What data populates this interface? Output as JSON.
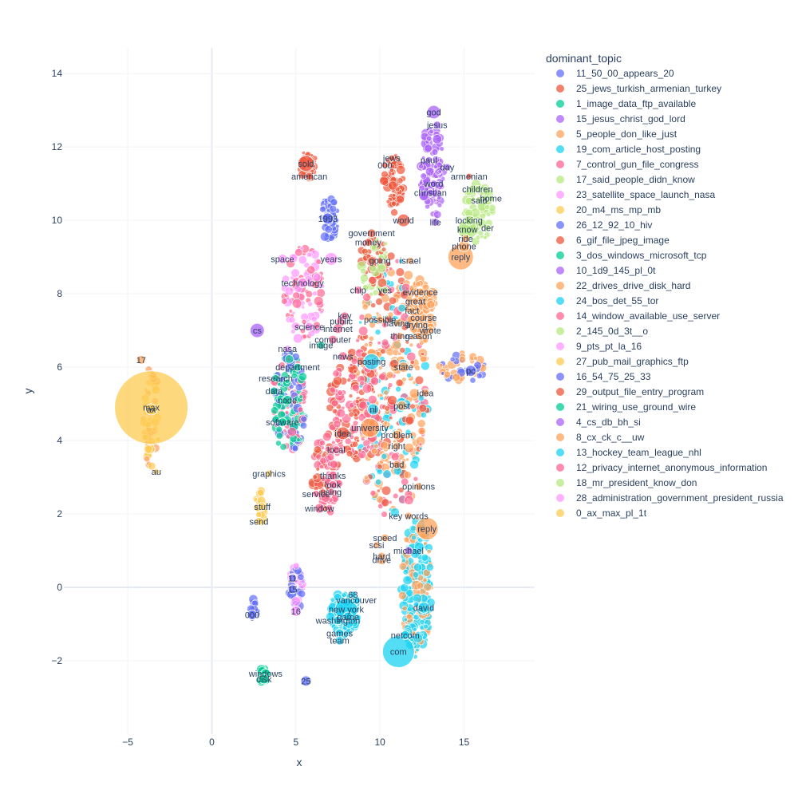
{
  "chart_data": {
    "type": "scatter",
    "title": "",
    "xlabel": "x",
    "ylabel": "y",
    "xlim": [
      -8.8,
      19.2
    ],
    "ylim": [
      -4.0,
      14.7
    ],
    "x_ticks": [
      -5,
      0,
      5,
      10,
      15
    ],
    "x_tick_labels": [
      "−5",
      "0",
      "5",
      "10",
      "15"
    ],
    "y_ticks": [
      -2,
      0,
      2,
      4,
      6,
      8,
      10,
      12,
      14
    ],
    "y_tick_labels": [
      "−2",
      "0",
      "2",
      "4",
      "6",
      "8",
      "10",
      "12",
      "14"
    ],
    "grid": true,
    "legend": {
      "title": "dominant_topic",
      "placement": "top-right",
      "entries": [
        {
          "name": "11_50_00_appears_20",
          "color": "#636efa"
        },
        {
          "name": "25_jews_turkish_armenian_turkey",
          "color": "#EF553B"
        },
        {
          "name": "1_image_data_ftp_available",
          "color": "#00cc96"
        },
        {
          "name": "15_jesus_christ_god_lord",
          "color": "#ab63fa"
        },
        {
          "name": "5_people_don_like_just",
          "color": "#FFA15A"
        },
        {
          "name": "19_com_article_host_posting",
          "color": "#19d3f3"
        },
        {
          "name": "7_control_gun_file_congress",
          "color": "#FF6692"
        },
        {
          "name": "17_said_people_didn_know",
          "color": "#B6E880"
        },
        {
          "name": "23_satellite_space_launch_nasa",
          "color": "#FF97FF"
        },
        {
          "name": "20_m4_ms_mp_mb",
          "color": "#FECB52"
        },
        {
          "name": "26_12_92_10_hiv",
          "color": "#636efa"
        },
        {
          "name": "6_gif_file_jpeg_image",
          "color": "#EF553B"
        },
        {
          "name": "3_dos_windows_microsoft_tcp",
          "color": "#00cc96"
        },
        {
          "name": "10_1d9_145_pl_0t",
          "color": "#ab63fa"
        },
        {
          "name": "22_drives_drive_disk_hard",
          "color": "#FFA15A"
        },
        {
          "name": "24_bos_det_55_tor",
          "color": "#19d3f3"
        },
        {
          "name": "14_window_available_use_server",
          "color": "#FF6692"
        },
        {
          "name": "2_145_0d_3t__o",
          "color": "#B6E880"
        },
        {
          "name": "9_pts_pt_la_16",
          "color": "#FF97FF"
        },
        {
          "name": "27_pub_mail_graphics_ftp",
          "color": "#FECB52"
        },
        {
          "name": "16_54_75_25_33",
          "color": "#636efa"
        },
        {
          "name": "29_output_file_entry_program",
          "color": "#EF553B"
        },
        {
          "name": "21_wiring_use_ground_wire",
          "color": "#00cc96"
        },
        {
          "name": "4_cs_db_bh_si",
          "color": "#ab63fa"
        },
        {
          "name": "8_cx_ck_c__uw",
          "color": "#FFA15A"
        },
        {
          "name": "13_hockey_team_league_nhl",
          "color": "#19d3f3"
        },
        {
          "name": "12_privacy_internet_anonymous_information",
          "color": "#FF6692"
        },
        {
          "name": "18_mr_president_know_don",
          "color": "#B6E880"
        },
        {
          "name": "28_administration_government_president_russia",
          "color": "#FF97FF"
        },
        {
          "name": "0_ax_max_pl_1t",
          "color": "#FECB52"
        }
      ]
    },
    "points": [
      {
        "label": "max",
        "x": -3.6,
        "y": 4.9,
        "size": 90,
        "topic": 29
      },
      {
        "label": "ax",
        "x": -3.6,
        "y": 4.85,
        "size": 12,
        "topic": 29
      },
      {
        "label": "17",
        "x": -4.2,
        "y": 6.2,
        "size": 9,
        "topic": 4
      },
      {
        "label": "au",
        "x": -3.3,
        "y": 3.15,
        "size": 6,
        "topic": 29
      },
      {
        "label": "cs",
        "x": 2.7,
        "y": 7.0,
        "size": 16,
        "topic": 23
      },
      {
        "label": "god",
        "x": 13.2,
        "y": 12.95,
        "size": 15,
        "topic": 3
      },
      {
        "label": "jesus",
        "x": 13.4,
        "y": 12.6,
        "size": 8,
        "topic": 3
      },
      {
        "label": "jews",
        "x": 10.7,
        "y": 11.7,
        "size": 6,
        "topic": 1
      },
      {
        "label": "000",
        "x": 10.3,
        "y": 11.5,
        "size": 6,
        "topic": 1
      },
      {
        "label": "paul",
        "x": 12.9,
        "y": 11.65,
        "size": 6,
        "topic": 3
      },
      {
        "label": "day",
        "x": 14.0,
        "y": 11.45,
        "size": 7,
        "topic": 3
      },
      {
        "label": "armenian",
        "x": 15.3,
        "y": 11.2,
        "size": 6,
        "topic": 1
      },
      {
        "label": "word",
        "x": 13.2,
        "y": 11.0,
        "size": 7,
        "topic": 3
      },
      {
        "label": "christian",
        "x": 13.0,
        "y": 10.75,
        "size": 7,
        "topic": 3
      },
      {
        "label": "children",
        "x": 15.8,
        "y": 10.85,
        "size": 7,
        "topic": 7
      },
      {
        "label": "said",
        "x": 15.9,
        "y": 10.55,
        "size": 7,
        "topic": 7
      },
      {
        "label": "home",
        "x": 16.6,
        "y": 10.6,
        "size": 6,
        "topic": 7
      },
      {
        "label": "world",
        "x": 11.4,
        "y": 10.0,
        "size": 14,
        "topic": 1
      },
      {
        "label": "life",
        "x": 13.3,
        "y": 9.95,
        "size": 8,
        "topic": 3
      },
      {
        "label": "locking",
        "x": 15.3,
        "y": 10.0,
        "size": 10,
        "topic": 17
      },
      {
        "label": "know",
        "x": 15.2,
        "y": 9.75,
        "size": 22,
        "topic": 17
      },
      {
        "label": "der",
        "x": 16.4,
        "y": 9.8,
        "size": 6,
        "topic": 17
      },
      {
        "label": "phone",
        "x": 15.0,
        "y": 9.3,
        "size": 12,
        "topic": 4
      },
      {
        "label": "reply",
        "x": 14.8,
        "y": 9.0,
        "size": 30,
        "topic": 4
      },
      {
        "label": "ride",
        "x": 15.1,
        "y": 9.5,
        "size": 8,
        "topic": 4
      },
      {
        "label": "american",
        "x": 5.8,
        "y": 11.2,
        "size": 8,
        "topic": 1
      },
      {
        "label": "sold",
        "x": 5.6,
        "y": 11.55,
        "size": 18,
        "topic": 1
      },
      {
        "label": "1993",
        "x": 6.9,
        "y": 10.05,
        "size": 12,
        "topic": 0
      },
      {
        "label": "government",
        "x": 9.5,
        "y": 9.65,
        "size": 9,
        "topic": 11
      },
      {
        "label": "money",
        "x": 9.3,
        "y": 9.4,
        "size": 8,
        "topic": 11
      },
      {
        "label": "israel",
        "x": 11.8,
        "y": 8.9,
        "size": 7,
        "topic": 14
      },
      {
        "label": "going",
        "x": 10.0,
        "y": 8.9,
        "size": 6,
        "topic": 11
      },
      {
        "label": "space",
        "x": 4.2,
        "y": 8.95,
        "size": 10,
        "topic": 8
      },
      {
        "label": "years",
        "x": 7.1,
        "y": 8.95,
        "size": 14,
        "topic": 8
      },
      {
        "label": "technology",
        "x": 5.4,
        "y": 8.3,
        "size": 10,
        "topic": 8
      },
      {
        "label": "chip",
        "x": 8.7,
        "y": 8.1,
        "size": 8,
        "topic": 6
      },
      {
        "label": "yes",
        "x": 10.3,
        "y": 8.1,
        "size": 7,
        "topic": 17
      },
      {
        "label": "evidence",
        "x": 12.4,
        "y": 8.05,
        "size": 8,
        "topic": 14
      },
      {
        "label": "great",
        "x": 12.1,
        "y": 7.8,
        "size": 7,
        "topic": 14
      },
      {
        "label": "fact",
        "x": 11.9,
        "y": 7.55,
        "size": 6,
        "topic": 14
      },
      {
        "label": "course",
        "x": 12.6,
        "y": 7.35,
        "size": 7,
        "topic": 14
      },
      {
        "label": "possible",
        "x": 10.0,
        "y": 7.3,
        "size": 7,
        "topic": 14
      },
      {
        "label": "having",
        "x": 11.0,
        "y": 7.2,
        "size": 7,
        "topic": 14
      },
      {
        "label": "trying",
        "x": 12.2,
        "y": 7.15,
        "size": 6,
        "topic": 14
      },
      {
        "label": "reason",
        "x": 12.3,
        "y": 6.85,
        "size": 7,
        "topic": 14
      },
      {
        "label": "thing",
        "x": 11.2,
        "y": 6.85,
        "size": 7,
        "topic": 14
      },
      {
        "label": "wrote",
        "x": 13.0,
        "y": 7.0,
        "size": 7,
        "topic": 14
      },
      {
        "label": "key",
        "x": 7.9,
        "y": 7.4,
        "size": 8,
        "topic": 26
      },
      {
        "label": "public",
        "x": 7.7,
        "y": 7.25,
        "size": 10,
        "topic": 26
      },
      {
        "label": "internet",
        "x": 7.5,
        "y": 7.05,
        "size": 10,
        "topic": 26
      },
      {
        "label": "computer",
        "x": 7.2,
        "y": 6.75,
        "size": 9,
        "topic": 26
      },
      {
        "label": "science",
        "x": 5.8,
        "y": 7.1,
        "size": 9,
        "topic": 8
      },
      {
        "label": "image",
        "x": 6.5,
        "y": 6.6,
        "size": 8,
        "topic": 2
      },
      {
        "label": "nasa",
        "x": 4.5,
        "y": 6.5,
        "size": 7,
        "topic": 8
      },
      {
        "label": "news",
        "x": 7.8,
        "y": 6.3,
        "size": 9,
        "topic": 6
      },
      {
        "label": "posting",
        "x": 9.5,
        "y": 6.15,
        "size": 18,
        "topic": 5
      },
      {
        "label": "state",
        "x": 11.4,
        "y": 6.0,
        "size": 11,
        "topic": 14
      },
      {
        "label": "department",
        "x": 5.1,
        "y": 6.0,
        "size": 8,
        "topic": 12
      },
      {
        "label": "research",
        "x": 3.8,
        "y": 5.7,
        "size": 7,
        "topic": 12
      },
      {
        "label": "data",
        "x": 3.7,
        "y": 5.35,
        "size": 8,
        "topic": 2
      },
      {
        "label": "pc",
        "x": 15.4,
        "y": 5.9,
        "size": 12,
        "topic": 20
      },
      {
        "label": "idea",
        "x": 12.7,
        "y": 5.3,
        "size": 8,
        "topic": 14
      },
      {
        "label": "code",
        "x": 4.5,
        "y": 5.1,
        "size": 10,
        "topic": 2
      },
      {
        "label": "post",
        "x": 11.3,
        "y": 4.95,
        "size": 10,
        "topic": 14
      },
      {
        "label": "nl",
        "x": 9.6,
        "y": 4.85,
        "size": 12,
        "topic": 5
      },
      {
        "label": "software",
        "x": 4.2,
        "y": 4.5,
        "size": 9,
        "topic": 2
      },
      {
        "label": "university",
        "x": 9.4,
        "y": 4.35,
        "size": 22,
        "topic": 14
      },
      {
        "label": "problem",
        "x": 11.0,
        "y": 4.15,
        "size": 10,
        "topic": 14
      },
      {
        "label": "idea",
        "x": 7.8,
        "y": 4.2,
        "size": 14,
        "topic": 1
      },
      {
        "label": "right",
        "x": 11.0,
        "y": 3.85,
        "size": 8,
        "topic": 14
      },
      {
        "label": "local",
        "x": 7.4,
        "y": 3.75,
        "size": 8,
        "topic": 6
      },
      {
        "label": "bad",
        "x": 11.0,
        "y": 3.35,
        "size": 8,
        "topic": 14
      },
      {
        "label": "graphics",
        "x": 3.4,
        "y": 3.1,
        "size": 7,
        "topic": 19
      },
      {
        "label": "thanks",
        "x": 7.2,
        "y": 3.05,
        "size": 9,
        "topic": 26
      },
      {
        "label": "look",
        "x": 7.2,
        "y": 2.8,
        "size": 8,
        "topic": 26
      },
      {
        "label": "opinions",
        "x": 12.3,
        "y": 2.75,
        "size": 8,
        "topic": 14
      },
      {
        "label": "service",
        "x": 6.2,
        "y": 2.55,
        "size": 7,
        "topic": 16
      },
      {
        "label": "using",
        "x": 7.1,
        "y": 2.6,
        "size": 7,
        "topic": 16
      },
      {
        "label": "stuff",
        "x": 3.0,
        "y": 2.2,
        "size": 8,
        "topic": 19
      },
      {
        "label": "window",
        "x": 6.4,
        "y": 2.15,
        "size": 10,
        "topic": 16
      },
      {
        "label": "key words",
        "x": 11.7,
        "y": 1.95,
        "size": 7,
        "topic": 24
      },
      {
        "label": "send",
        "x": 2.8,
        "y": 1.8,
        "size": 8,
        "topic": 19
      },
      {
        "label": "reply",
        "x": 12.8,
        "y": 1.6,
        "size": 26,
        "topic": 24
      },
      {
        "label": "speed",
        "x": 10.3,
        "y": 1.35,
        "size": 8,
        "topic": 24
      },
      {
        "label": "michael",
        "x": 11.7,
        "y": 1.0,
        "size": 8,
        "topic": 13
      },
      {
        "label": "scsi",
        "x": 9.8,
        "y": 1.15,
        "size": 7,
        "topic": 24
      },
      {
        "label": "hard",
        "x": 10.1,
        "y": 0.85,
        "size": 8,
        "topic": 24
      },
      {
        "label": "drive",
        "x": 10.1,
        "y": 0.75,
        "size": 10,
        "topic": 24
      },
      {
        "label": "11",
        "x": 4.8,
        "y": 0.25,
        "size": 8,
        "topic": 0
      },
      {
        "label": "15",
        "x": 4.8,
        "y": -0.05,
        "size": 9,
        "topic": 0
      },
      {
        "label": "16",
        "x": 5.0,
        "y": -0.65,
        "size": 11,
        "topic": 8
      },
      {
        "label": "68",
        "x": 8.4,
        "y": -0.2,
        "size": 7,
        "topic": 15
      },
      {
        "label": "vancouver",
        "x": 8.6,
        "y": -0.35,
        "size": 8,
        "topic": 15
      },
      {
        "label": "new york",
        "x": 8.0,
        "y": -0.6,
        "size": 26,
        "topic": 15
      },
      {
        "label": "game",
        "x": 8.1,
        "y": -0.8,
        "size": 10,
        "topic": 15
      },
      {
        "label": "david",
        "x": 12.6,
        "y": -0.55,
        "size": 12,
        "topic": 15
      },
      {
        "label": "washington",
        "x": 7.5,
        "y": -0.9,
        "size": 9,
        "topic": 15
      },
      {
        "label": "games",
        "x": 7.6,
        "y": -1.25,
        "size": 9,
        "topic": 15
      },
      {
        "label": "team",
        "x": 7.6,
        "y": -1.45,
        "size": 9,
        "topic": 15
      },
      {
        "label": "netcom",
        "x": 11.5,
        "y": -1.3,
        "size": 9,
        "topic": 5
      },
      {
        "label": "com",
        "x": 11.1,
        "y": -1.75,
        "size": 38,
        "topic": 5
      },
      {
        "label": "windows",
        "x": 3.2,
        "y": -2.35,
        "size": 10,
        "topic": 12
      },
      {
        "label": "disk",
        "x": 3.1,
        "y": -2.5,
        "size": 10,
        "topic": 12
      },
      {
        "label": "25",
        "x": 5.6,
        "y": -2.55,
        "size": 11,
        "topic": 20
      },
      {
        "label": "000",
        "x": 2.4,
        "y": -0.75,
        "size": 10,
        "topic": 10
      }
    ]
  }
}
